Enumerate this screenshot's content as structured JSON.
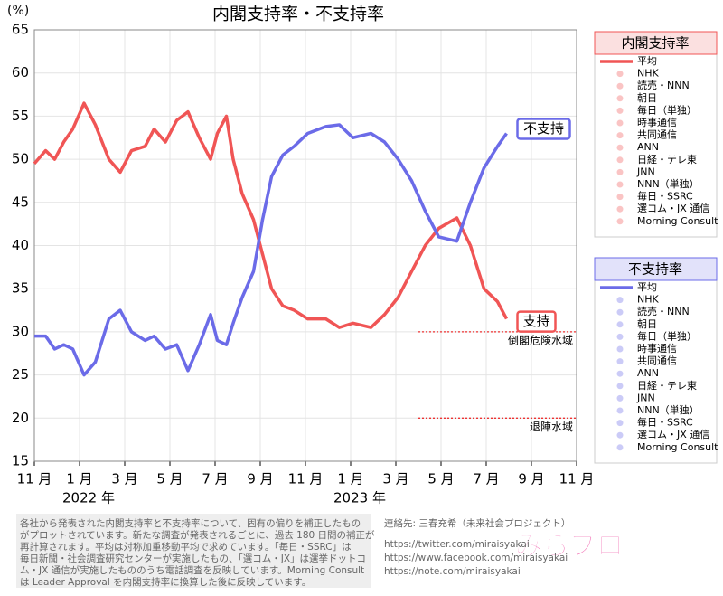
{
  "chart_data": {
    "type": "line",
    "title": "内閣支持率・不支持率",
    "y_label": "(%)",
    "x": [
      0,
      0.5,
      0.9,
      1.3,
      1.7,
      2.2,
      2.7,
      3.3,
      3.8,
      4.3,
      4.9,
      5.3,
      5.8,
      6.3,
      6.8,
      7.3,
      7.8,
      8.1,
      8.5,
      8.8,
      9.2,
      9.7,
      10.1,
      10.5,
      11.0,
      11.5,
      12.1,
      12.9,
      13.5,
      14.1,
      14.9,
      15.5,
      16.1,
      16.7,
      17.3,
      17.9,
      18.7,
      19.3,
      19.9,
      20.5,
      20.9
    ],
    "series": [
      {
        "name": "支持",
        "color": "#f05555",
        "values": [
          49.5,
          51,
          50,
          52,
          53.5,
          56.5,
          54,
          50,
          48.5,
          51,
          51.5,
          53.5,
          52,
          54.5,
          55.5,
          52.5,
          50,
          53,
          55,
          50,
          46,
          43,
          39,
          35,
          33,
          32.5,
          31.5,
          31.5,
          30.5,
          31,
          30.5,
          32,
          34,
          37,
          40,
          42,
          43.2,
          40,
          35,
          33.5,
          31.5
        ]
      },
      {
        "name": "不支持",
        "color": "#6b6be8",
        "values": [
          29.5,
          29.5,
          28,
          28.5,
          28,
          25,
          26.5,
          31.5,
          32.5,
          30,
          29,
          29.5,
          28,
          28.5,
          25.5,
          28.5,
          32,
          29,
          28.5,
          31,
          34,
          37,
          43,
          48,
          50.5,
          51.5,
          53,
          53.8,
          54,
          52.5,
          53,
          52,
          50,
          47.5,
          44,
          41,
          40.5,
          45,
          49,
          51.5,
          53
        ]
      }
    ],
    "xlim": [
      0,
      24
    ],
    "xticks": [
      {
        "value": 0,
        "label": "11 月"
      },
      {
        "value": 2,
        "label": "1 月"
      },
      {
        "value": 4,
        "label": "3 月"
      },
      {
        "value": 6,
        "label": "5 月"
      },
      {
        "value": 8,
        "label": "7 月"
      },
      {
        "value": 10,
        "label": "9 月"
      },
      {
        "value": 12,
        "label": "11 月"
      },
      {
        "value": 14,
        "label": "1 月"
      },
      {
        "value": 16,
        "label": "3 月"
      },
      {
        "value": 18,
        "label": "5 月"
      },
      {
        "value": 20,
        "label": "7 月"
      },
      {
        "value": 22,
        "label": "9 月"
      },
      {
        "value": 24,
        "label": "11 月"
      }
    ],
    "year_labels": [
      {
        "value": 2,
        "label": "2022 年"
      },
      {
        "value": 14,
        "label": "2023 年"
      }
    ],
    "ylim": [
      15,
      65
    ],
    "yticks": [
      15,
      20,
      25,
      30,
      35,
      40,
      45,
      50,
      55,
      60,
      65
    ],
    "grid": true,
    "reference_lines": [
      {
        "value": 30,
        "start": 17,
        "label": "倒閣危険水域"
      },
      {
        "value": 20,
        "start": 17,
        "label": "退陣水域"
      }
    ],
    "legends": [
      {
        "title": "内閣支持率",
        "color": "#f05555",
        "bg": "#fbe0e0",
        "entries": [
          "平均",
          "NHK",
          "読売・NNN",
          "朝日",
          "毎日（単独）",
          "時事通信",
          "共同通信",
          "ANN",
          "日経・テレ東",
          "JNN",
          "NNN（単独）",
          "毎日・SSRC",
          "選コム・JX 通信",
          "Morning Consult"
        ]
      },
      {
        "title": "不支持率",
        "color": "#6b6be8",
        "bg": "#e2e2fa",
        "entries": [
          "平均",
          "NHK",
          "読売・NNN",
          "朝日",
          "毎日（単独）",
          "時事通信",
          "共同通信",
          "ANN",
          "日経・テレ東",
          "JNN",
          "NNN（単独）",
          "毎日・SSRC",
          "選コム・JX 通信",
          "Morning Consult"
        ]
      }
    ]
  },
  "footer": {
    "note": [
      "各社から発表された内閣支持率と不支持率について、固有の偏りを補正したもの",
      "がプロットされています。新たな調査が発表されるごとに、過去 180 日間の補正が",
      "再計算されます。平均は対称加重移動平均で求めています。「毎日・SSRC」は",
      "毎日新聞・社会調査研究センターが実施したもの、「選コム・JX」は選挙ドットコ",
      "ム・JX 通信が実施したもののうち電話調査を反映しています。Morning Consult",
      "は Leader Approval を内閣支持率に換算した後に反映しています。"
    ],
    "contact": [
      "連絡先: 三春充希（未来社会プロジェクト）",
      "https://twitter.com/miraisyakai",
      "https://www.facebook.com/miraisyakai",
      "https://note.com/miraisyakai"
    ],
    "logo": "みらプロ"
  }
}
